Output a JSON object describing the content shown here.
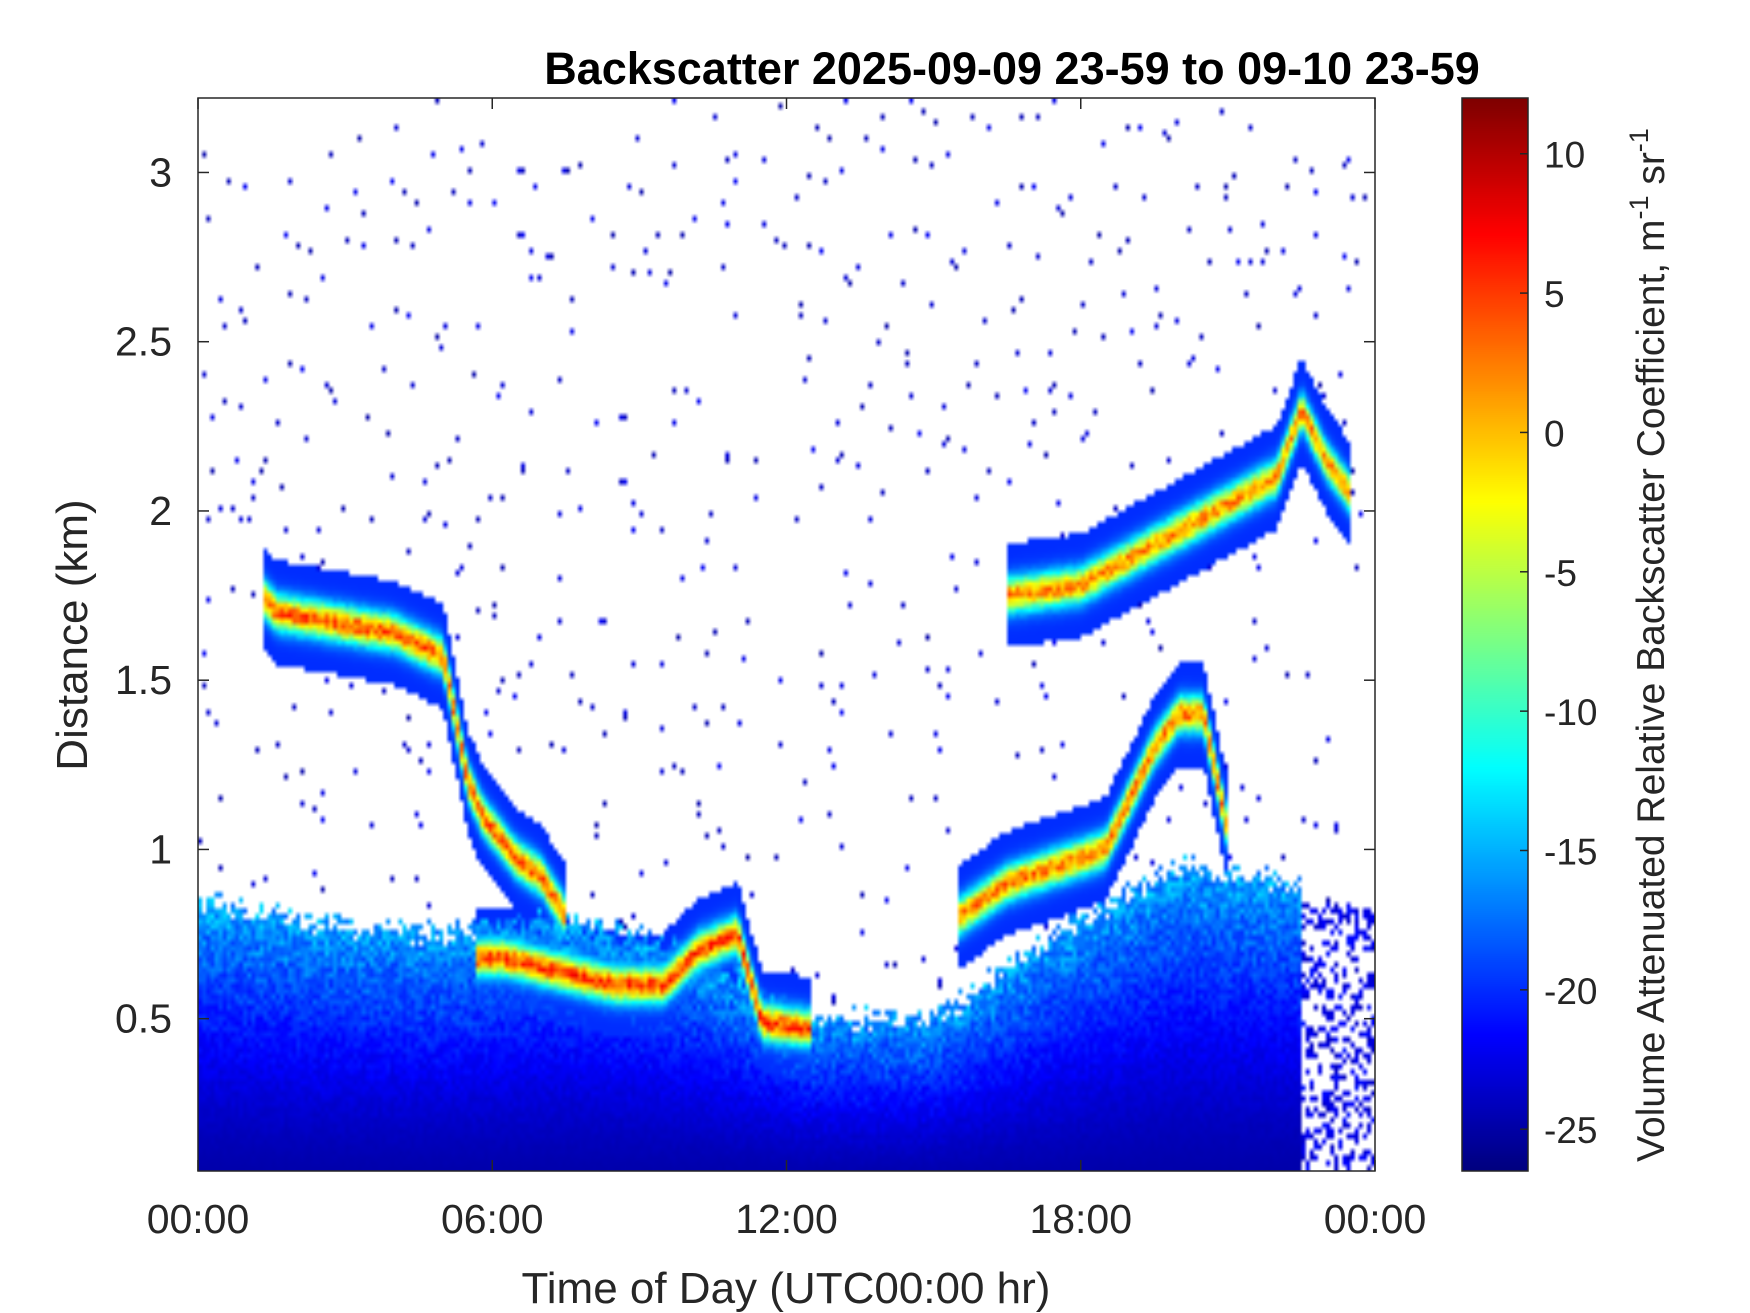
{
  "chart_data": {
    "type": "heatmap",
    "title": "Backscatter 2025-09-09 23-59 to 09-10 23-59",
    "xlabel": "Time of Day (UTC00:00 hr)",
    "ylabel": "Distance (km)",
    "colorbar_label": "Volume Attenuated Relative Backscatter Coefficient, m",
    "colorbar_unit_sup1": "-1",
    "colorbar_unit_mid": " sr",
    "colorbar_unit_sup2": "-1",
    "xlim_hours": [
      0,
      24
    ],
    "ylim_km": [
      0.05,
      3.22
    ],
    "clim": [
      -26.5,
      12
    ],
    "colormap": "jet",
    "x_ticks": [
      {
        "value": 0,
        "label": "00:00"
      },
      {
        "value": 6,
        "label": "06:00"
      },
      {
        "value": 12,
        "label": "12:00"
      },
      {
        "value": 18,
        "label": "18:00"
      },
      {
        "value": 24,
        "label": "00:00"
      }
    ],
    "y_ticks": [
      {
        "value": 0.5,
        "label": "0.5"
      },
      {
        "value": 1,
        "label": "1"
      },
      {
        "value": 1.5,
        "label": "1.5"
      },
      {
        "value": 2,
        "label": "2"
      },
      {
        "value": 2.5,
        "label": "2.5"
      },
      {
        "value": 3,
        "label": "3"
      }
    ],
    "colorbar_ticks": [
      {
        "value": -25,
        "label": "-25"
      },
      {
        "value": -20,
        "label": "-20"
      },
      {
        "value": -15,
        "label": "-15"
      },
      {
        "value": -10,
        "label": "-10"
      },
      {
        "value": -5,
        "label": "-5"
      },
      {
        "value": 0,
        "label": "0"
      },
      {
        "value": 5,
        "label": "5"
      },
      {
        "value": 10,
        "label": "10"
      }
    ],
    "grid": false,
    "features": [
      {
        "name": "boundary-layer aerosol",
        "t_start": 0,
        "t_end": 22.5,
        "top_km_approx": [
          0.85,
          0.78,
          0.75,
          0.8,
          0.7,
          0.5,
          0.5,
          0.75,
          0.95,
          0.9
        ],
        "value_range": [
          -25,
          -13
        ]
      },
      {
        "name": "aerosol layer 1",
        "points": [
          [
            1.3,
            1.75
          ],
          [
            1.6,
            1.7
          ],
          [
            4.0,
            1.64
          ],
          [
            5.0,
            1.57
          ],
          [
            5.5,
            1.2
          ],
          [
            5.8,
            1.1
          ],
          [
            6.5,
            0.97
          ],
          [
            7.0,
            0.92
          ],
          [
            7.5,
            0.8
          ]
        ],
        "peak_value": 7
      },
      {
        "name": "layer near 0.6 km",
        "points": [
          [
            5.7,
            0.68
          ],
          [
            6.2,
            0.68
          ],
          [
            8.5,
            0.6
          ],
          [
            9.5,
            0.6
          ],
          [
            10.2,
            0.7
          ],
          [
            11.0,
            0.75
          ],
          [
            11.5,
            0.49
          ],
          [
            12.5,
            0.47
          ]
        ],
        "peak_value": 8
      },
      {
        "name": "afternoon cloud base",
        "points": [
          [
            15.5,
            0.8
          ],
          [
            16.5,
            0.9
          ],
          [
            17.5,
            0.95
          ],
          [
            18.5,
            1.0
          ],
          [
            19.0,
            1.15
          ],
          [
            19.5,
            1.3
          ],
          [
            20.0,
            1.4
          ],
          [
            20.5,
            1.4
          ],
          [
            21.0,
            1.05
          ]
        ],
        "peak_value": 6
      },
      {
        "name": "upper layers",
        "points": [
          [
            16.5,
            1.75
          ],
          [
            18.0,
            1.78
          ],
          [
            22.0,
            2.1
          ],
          [
            22.5,
            2.3
          ],
          [
            23.0,
            2.15
          ],
          [
            23.5,
            2.05
          ]
        ],
        "peak_value": 5
      }
    ]
  }
}
